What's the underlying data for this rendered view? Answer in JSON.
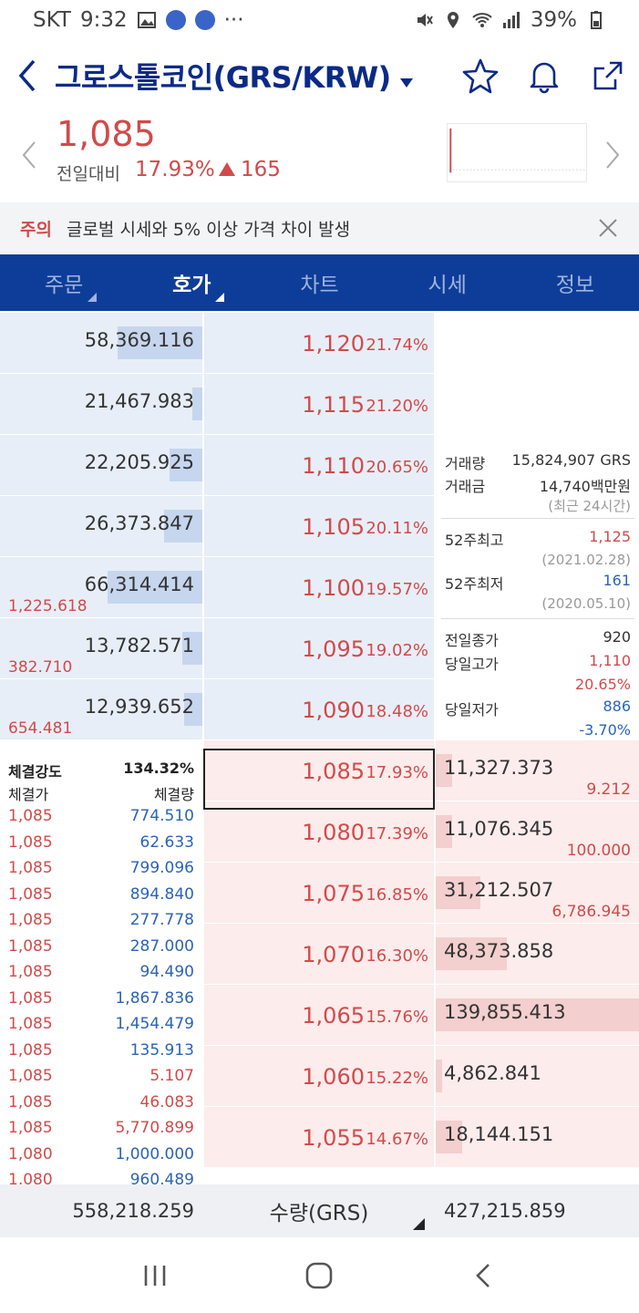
{
  "status": {
    "carrier": "SKT",
    "time": "9:32",
    "dots": "···",
    "battery": "39%"
  },
  "header": {
    "title": "그로스톨코인(GRS/KRW)"
  },
  "summary": {
    "price": "1,085",
    "change_label": "전일대비",
    "change_pct": "17.93%",
    "change_abs": "165"
  },
  "notice": {
    "tag": "주의",
    "message": "글로벌 시세와 5% 이상 가격 차이 발생"
  },
  "tabs": [
    {
      "label": "주문",
      "active": false
    },
    {
      "label": "호가",
      "active": true
    },
    {
      "label": "차트",
      "active": false
    },
    {
      "label": "시세",
      "active": false
    },
    {
      "label": "정보",
      "active": false
    }
  ],
  "asks": [
    {
      "qty": "58,369.116",
      "price": "1,120",
      "pct": "21.74%",
      "fill": 0.42,
      "change": ""
    },
    {
      "qty": "21,467.983",
      "price": "1,115",
      "pct": "21.20%",
      "fill": 0.05,
      "change": ""
    },
    {
      "qty": "22,205.925",
      "price": "1,110",
      "pct": "20.65%",
      "fill": 0.16,
      "change": ""
    },
    {
      "qty": "26,373.847",
      "price": "1,105",
      "pct": "20.11%",
      "fill": 0.19,
      "change": ""
    },
    {
      "qty": "66,314.414",
      "price": "1,100",
      "pct": "19.57%",
      "fill": 0.47,
      "change": "1,225.618"
    },
    {
      "qty": "13,782.571",
      "price": "1,095",
      "pct": "19.02%",
      "fill": 0.1,
      "change": "382.710"
    },
    {
      "qty": "12,939.652",
      "price": "1,090",
      "pct": "18.48%",
      "fill": 0.09,
      "change": "654.481"
    }
  ],
  "bids": [
    {
      "qty": "11,327.373",
      "price": "1,085",
      "pct": "17.93%",
      "fill": 0.08,
      "change": "9.212"
    },
    {
      "qty": "11,076.345",
      "price": "1,080",
      "pct": "17.39%",
      "fill": 0.08,
      "change": "100.000"
    },
    {
      "qty": "31,212.507",
      "price": "1,075",
      "pct": "16.85%",
      "fill": 0.22,
      "change": "6,786.945"
    },
    {
      "qty": "48,373.858",
      "price": "1,070",
      "pct": "16.30%",
      "fill": 0.35,
      "change": ""
    },
    {
      "qty": "139,855.413",
      "price": "1,065",
      "pct": "15.76%",
      "fill": 1.0,
      "change": ""
    },
    {
      "qty": "4,862.841",
      "price": "1,060",
      "pct": "15.22%",
      "fill": 0.03,
      "change": ""
    },
    {
      "qty": "18,144.151",
      "price": "1,055",
      "pct": "14.67%",
      "fill": 0.13,
      "change": ""
    }
  ],
  "info": {
    "volume_label": "거래량",
    "volume": "15,824,907 GRS",
    "amount_label": "거래금",
    "amount": "14,740백만원",
    "recent": "(최근 24시간)",
    "high52_label": "52주최고",
    "high52": "1,125",
    "high52_date": "(2021.02.28)",
    "low52_label": "52주최저",
    "low52": "161",
    "low52_date": "(2020.05.10)",
    "prev_close_label": "전일종가",
    "prev_close": "920",
    "day_high_label": "당일고가",
    "day_high": "1,110",
    "day_high_pct": "20.65%",
    "day_low_label": "당일저가",
    "day_low": "886",
    "day_low_pct": "-3.70%"
  },
  "trades": {
    "strength_label": "체결강도",
    "strength": "134.32%",
    "price_header": "체결가",
    "qty_header": "체결량",
    "rows": [
      {
        "price": "1,085",
        "qty": "774.510",
        "side": "buy"
      },
      {
        "price": "1,085",
        "qty": "62.633",
        "side": "buy"
      },
      {
        "price": "1,085",
        "qty": "799.096",
        "side": "buy"
      },
      {
        "price": "1,085",
        "qty": "894.840",
        "side": "buy"
      },
      {
        "price": "1,085",
        "qty": "277.778",
        "side": "buy"
      },
      {
        "price": "1,085",
        "qty": "287.000",
        "side": "buy"
      },
      {
        "price": "1,085",
        "qty": "94.490",
        "side": "buy"
      },
      {
        "price": "1,085",
        "qty": "1,867.836",
        "side": "buy"
      },
      {
        "price": "1,085",
        "qty": "1,454.479",
        "side": "buy"
      },
      {
        "price": "1,085",
        "qty": "135.913",
        "side": "buy"
      },
      {
        "price": "1,085",
        "qty": "5.107",
        "side": "sell"
      },
      {
        "price": "1,085",
        "qty": "46.083",
        "side": "sell"
      },
      {
        "price": "1,085",
        "qty": "5,770.899",
        "side": "sell"
      },
      {
        "price": "1,080",
        "qty": "1,000.000",
        "side": "buy"
      },
      {
        "price": "1,080",
        "qty": "960.489",
        "side": "buy"
      }
    ]
  },
  "footer": {
    "ask_total": "558,218.259",
    "unit": "수량(GRS)",
    "bid_total": "427,215.859"
  },
  "colors": {
    "up": "#d14a4a",
    "down": "#2a63b8",
    "navy": "#0e3d99"
  }
}
